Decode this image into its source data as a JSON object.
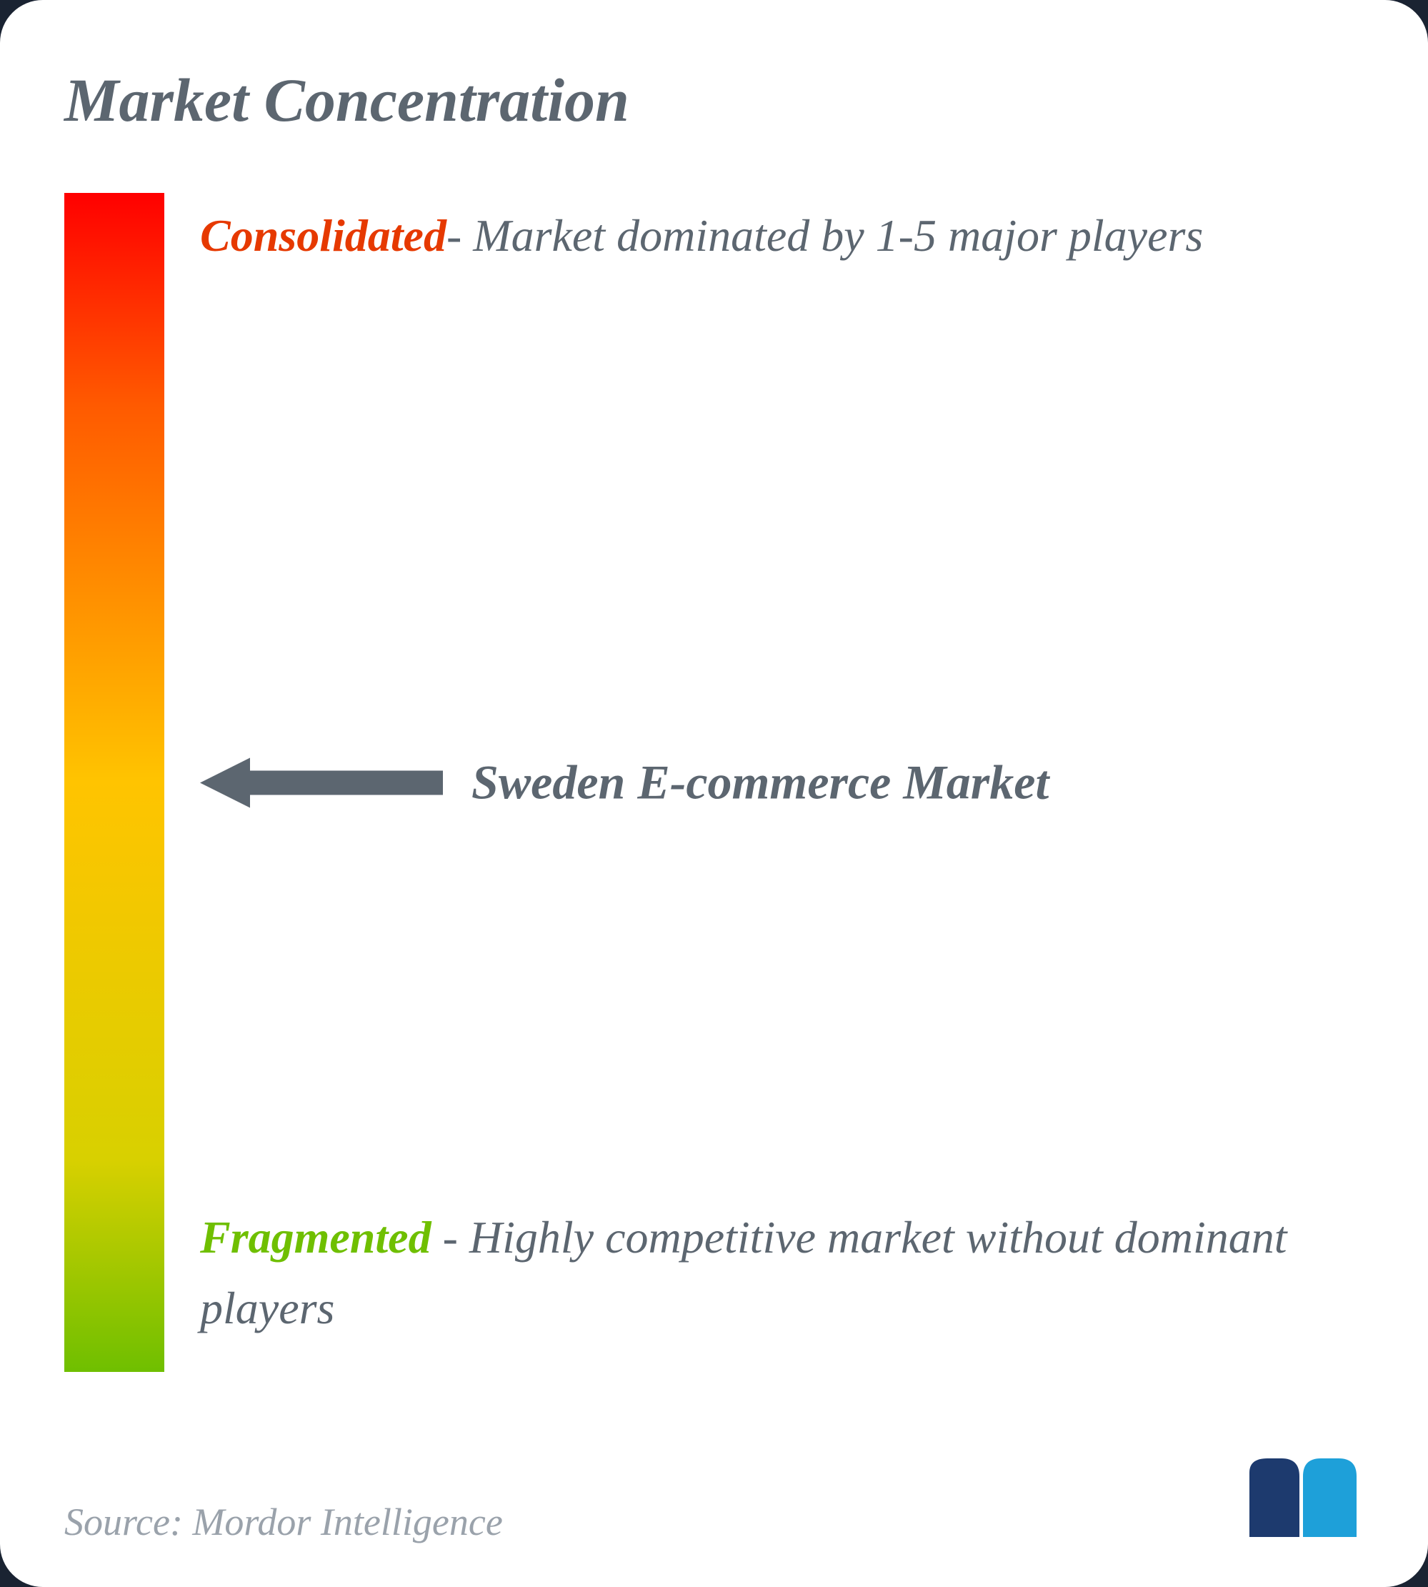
{
  "title": "Market Concentration",
  "gradient": {
    "top": "#ff0000",
    "upper": "#ff5a00",
    "mid": "#ffc400",
    "lower": "#d8d000",
    "bottom": "#6fbf00"
  },
  "top_label": {
    "keyword": "Consolidated",
    "keyword_color": "#e63900",
    "rest": "- Market dominated by 1-5 major players"
  },
  "pointer": {
    "label": "Sweden E-commerce Market",
    "position_pct": 50,
    "arrow_color": "#5c6670",
    "arrow_width": 340,
    "arrow_height": 70
  },
  "bottom_label": {
    "keyword": "Fragmented",
    "keyword_color": "#6fbf00",
    "rest": " - Highly competitive market without dominant players"
  },
  "source": "Source: Mordor Intelligence",
  "logo_colors": {
    "left": "#1d3a6e",
    "right": "#1ea0d9"
  },
  "text_color": "#5c6670",
  "background": "#ffffff",
  "title_fontsize": 86,
  "body_fontsize": 64,
  "pointer_fontsize": 68,
  "source_fontsize": 54
}
